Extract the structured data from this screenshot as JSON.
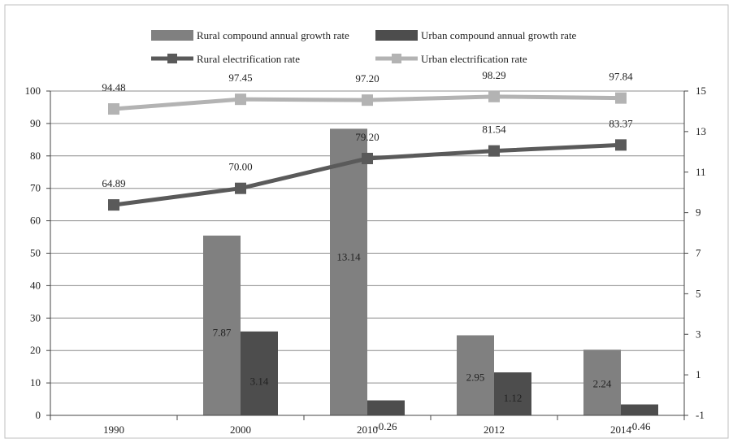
{
  "chart_data": {
    "type": "bar",
    "categories": [
      "1990",
      "2000",
      "2010",
      "2012",
      "2014"
    ],
    "y_left": {
      "min": 0,
      "max": 100,
      "ticks": [
        0,
        10,
        20,
        30,
        40,
        50,
        60,
        70,
        80,
        90,
        100
      ]
    },
    "y_right": {
      "min": -1,
      "max": 15,
      "ticks": [
        -1,
        1,
        3,
        5,
        7,
        9,
        11,
        13,
        15
      ]
    },
    "grid": true,
    "legend_position": "top",
    "bar_series": [
      {
        "name": "Rural compound annual growth rate",
        "axis": "right",
        "color": "#808080",
        "values": [
          null,
          7.87,
          13.14,
          2.95,
          2.24
        ],
        "labels": [
          "",
          "7.87",
          "13.14",
          "2.95",
          "2.24"
        ]
      },
      {
        "name": "Urban compound annual growth rate",
        "axis": "right",
        "color": "#4d4d4d",
        "values": [
          null,
          3.14,
          -0.26,
          1.12,
          -0.46
        ],
        "labels": [
          "",
          "3.14",
          "-0.26",
          "1.12",
          "-0.46"
        ]
      }
    ],
    "line_series": [
      {
        "name": "Rural electrification rate",
        "axis": "left",
        "color": "#5a5a5a",
        "values": [
          64.89,
          70.0,
          79.2,
          81.54,
          83.37
        ],
        "labels": [
          "64.89",
          "70.00",
          "79.20",
          "81.54",
          "83.37"
        ]
      },
      {
        "name": "Urban electrification rate",
        "axis": "left",
        "color": "#b3b3b3",
        "values": [
          94.48,
          97.45,
          97.2,
          98.29,
          97.84
        ],
        "labels": [
          "94.48",
          "97.45",
          "97.20",
          "98.29",
          "97.84"
        ]
      }
    ]
  }
}
